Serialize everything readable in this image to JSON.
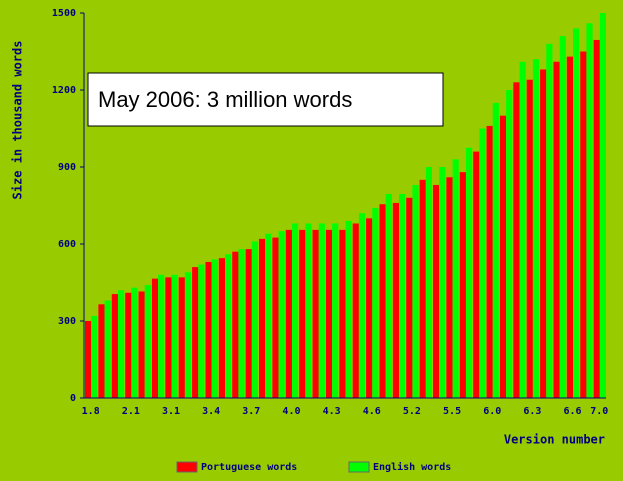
{
  "chart_data": {
    "type": "bar",
    "annotation": "May 2006: 3 million words",
    "x_label": "Version number",
    "y_label": "Size in thousand words",
    "categories": [
      "1.8",
      null,
      null,
      "2.1",
      null,
      null,
      "3.1",
      null,
      null,
      "3.4",
      null,
      null,
      "3.7",
      null,
      null,
      "4.0",
      null,
      null,
      "4.3",
      null,
      null,
      "4.6",
      null,
      null,
      "5.2",
      null,
      null,
      "5.5",
      null,
      null,
      "6.0",
      null,
      null,
      "6.3",
      null,
      null,
      "6.6",
      null,
      "7.0"
    ],
    "series": [
      {
        "name": "Portuguese words",
        "color": "#ff0000",
        "values": [
          300,
          365,
          405,
          410,
          415,
          465,
          470,
          470,
          510,
          530,
          545,
          570,
          580,
          620,
          625,
          655,
          655,
          655,
          655,
          655,
          680,
          700,
          755,
          760,
          780,
          850,
          830,
          860,
          880,
          960,
          1060,
          1100,
          1230,
          1240,
          1280,
          1310,
          1330,
          1350,
          1395
        ]
      },
      {
        "name": "English words",
        "color": "#00ff00",
        "values": [
          320,
          380,
          420,
          430,
          440,
          480,
          480,
          490,
          520,
          540,
          560,
          580,
          610,
          640,
          650,
          680,
          680,
          680,
          680,
          690,
          720,
          740,
          795,
          795,
          830,
          900,
          900,
          930,
          975,
          1050,
          1150,
          1200,
          1310,
          1320,
          1380,
          1410,
          1440,
          1460,
          1500
        ]
      }
    ],
    "ylim": [
      0,
      1500
    ],
    "yticks": [
      0,
      300,
      600,
      900,
      1200,
      1500
    ]
  }
}
